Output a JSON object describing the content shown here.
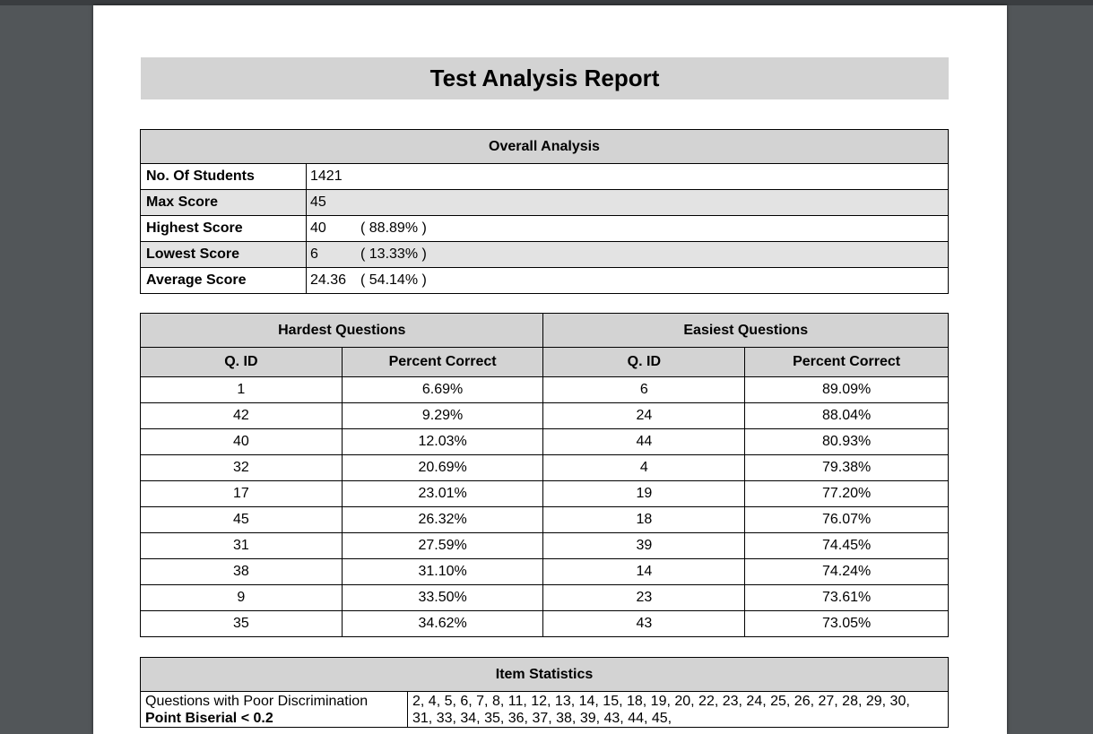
{
  "report": {
    "title": "Test Analysis Report"
  },
  "overall": {
    "header": "Overall Analysis",
    "rows": [
      {
        "label": "No. Of Students",
        "value": "1421",
        "pct": ""
      },
      {
        "label": "Max Score",
        "value": "45",
        "pct": ""
      },
      {
        "label": "Highest Score",
        "value": "40",
        "pct": "( 88.89% )"
      },
      {
        "label": "Lowest Score",
        "value": "6",
        "pct": "( 13.33% )"
      },
      {
        "label": "Average Score",
        "value": "24.36",
        "pct": "( 54.14% )"
      }
    ]
  },
  "questions": {
    "hardest_header": "Hardest Questions",
    "easiest_header": "Easiest Questions",
    "col_qid": "Q. ID",
    "col_pct": "Percent Correct",
    "hardest": [
      {
        "qid": "1",
        "pct": "6.69%"
      },
      {
        "qid": "42",
        "pct": "9.29%"
      },
      {
        "qid": "40",
        "pct": "12.03%"
      },
      {
        "qid": "32",
        "pct": "20.69%"
      },
      {
        "qid": "17",
        "pct": "23.01%"
      },
      {
        "qid": "45",
        "pct": "26.32%"
      },
      {
        "qid": "31",
        "pct": "27.59%"
      },
      {
        "qid": "38",
        "pct": "31.10%"
      },
      {
        "qid": "9",
        "pct": "33.50%"
      },
      {
        "qid": "35",
        "pct": "34.62%"
      }
    ],
    "easiest": [
      {
        "qid": "6",
        "pct": "89.09%"
      },
      {
        "qid": "24",
        "pct": "88.04%"
      },
      {
        "qid": "44",
        "pct": "80.93%"
      },
      {
        "qid": "4",
        "pct": "79.38%"
      },
      {
        "qid": "19",
        "pct": "77.20%"
      },
      {
        "qid": "18",
        "pct": "76.07%"
      },
      {
        "qid": "39",
        "pct": "74.45%"
      },
      {
        "qid": "14",
        "pct": "74.24%"
      },
      {
        "qid": "23",
        "pct": "73.61%"
      },
      {
        "qid": "43",
        "pct": "73.05%"
      }
    ]
  },
  "item_stats": {
    "header": "Item Statistics",
    "label_line1": "Questions with Poor Discrimination",
    "label_line2": "Point Biserial < 0.2",
    "values_line1": "2, 4, 5, 6, 7, 8, 11, 12, 13, 14, 15, 18, 19, 20, 22, 23, 24, 25, 26, 27, 28, 29, 30,",
    "values_line2": "31, 33, 34, 35, 36, 37, 38, 39, 43, 44, 45,"
  }
}
